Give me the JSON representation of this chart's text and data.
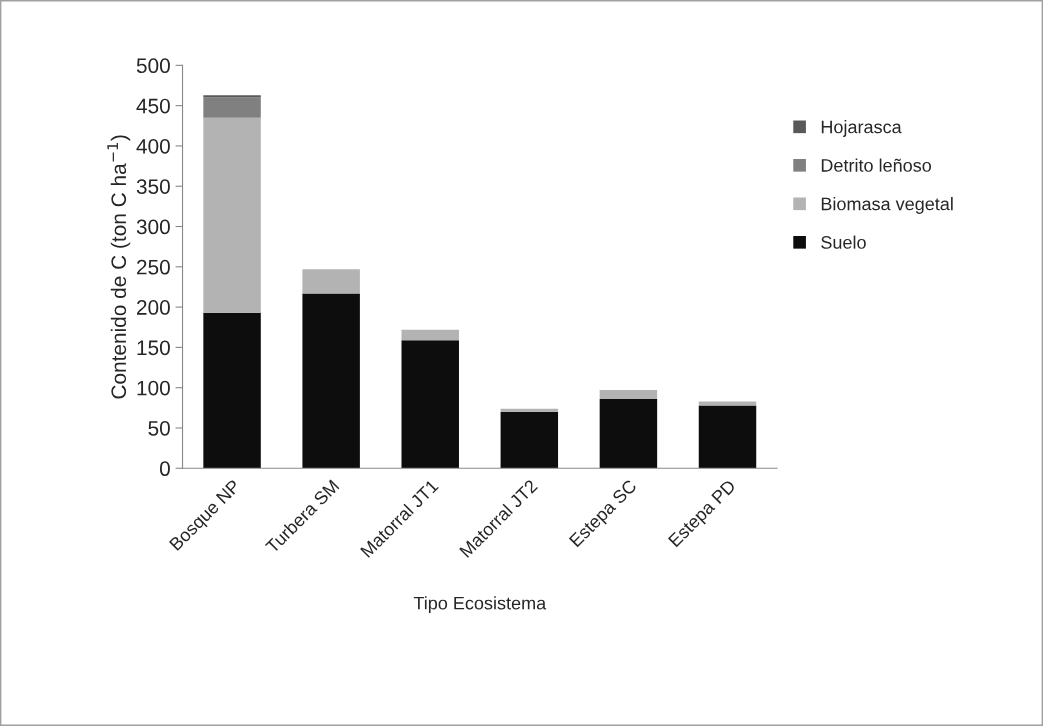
{
  "chart_data": {
    "type": "bar",
    "stacked": true,
    "xlabel": "Tipo Ecosistema",
    "ylabel": "Contenido de C (ton C ha$^{−1}$)",
    "categories": [
      "Bosque NP",
      "Turbera SM",
      "Matorral JT1",
      "Matorral JT2",
      "Estepa SC",
      "Estepa PD"
    ],
    "series": [
      {
        "name": "Suelo",
        "color": "#0d0d0d",
        "values": [
          193,
          217,
          159,
          70,
          86,
          78
        ]
      },
      {
        "name": "Biomasa vegetal",
        "color": "#b3b3b3",
        "values": [
          242,
          30,
          13,
          4,
          11,
          5
        ]
      },
      {
        "name": "Detrito leñoso",
        "color": "#808080",
        "values": [
          25,
          null,
          null,
          null,
          null,
          null
        ]
      },
      {
        "name": "Hojarasca",
        "color": "#595959",
        "values": [
          3,
          null,
          null,
          null,
          null,
          null
        ]
      }
    ],
    "ylim": [
      0,
      500
    ],
    "yticks": [
      0,
      50,
      100,
      150,
      200,
      250,
      300,
      350,
      400,
      450,
      500
    ],
    "grid": false,
    "legend": "right"
  }
}
